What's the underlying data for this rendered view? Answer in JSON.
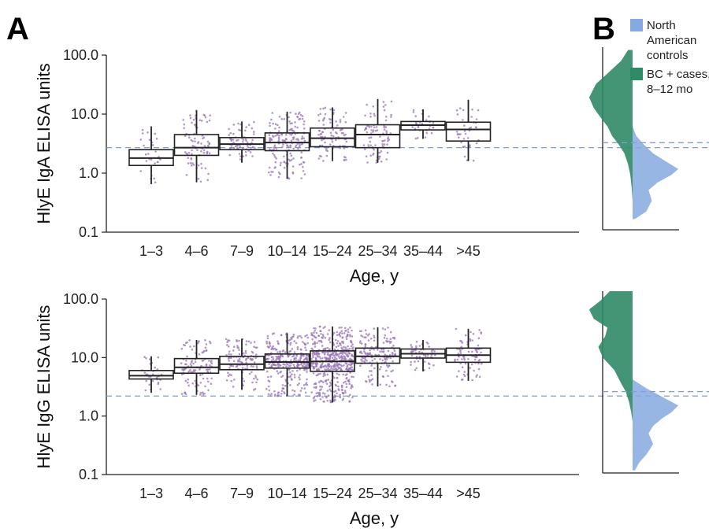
{
  "panel_labels": {
    "a": "A",
    "b": "B"
  },
  "legend": [
    {
      "label_lines": [
        "North",
        "American",
        "controls"
      ],
      "color": "#86a9df"
    },
    {
      "label_lines": [
        "BC + cases,",
        "8–12 mo"
      ],
      "color": "#2f8a66"
    }
  ],
  "colors": {
    "point": "#9a77b8",
    "box": "#222222",
    "threshold": "#7f9fd0",
    "controls": "#86a9df",
    "cases": "#2f8a66"
  },
  "chart_data": [
    {
      "type": "box",
      "panel": "A",
      "ylabel": "HlyE IgA ELISA units",
      "xlabel": "Age, y",
      "yscale": "log",
      "ylim": [
        0.1,
        100
      ],
      "yticks": [
        "100.0",
        "10.0",
        "1.0",
        "0.1"
      ],
      "ytick_values": [
        100,
        10,
        1,
        0.1
      ],
      "threshold": 2.7,
      "categories": [
        "1–3",
        "4–6",
        "7–9",
        "10–14",
        "15–24",
        "25–34",
        "35–44",
        ">45"
      ],
      "boxes": [
        {
          "min": 0.65,
          "q1": 1.35,
          "median": 1.8,
          "q3": 2.5,
          "max": 6.2,
          "n": 28
        },
        {
          "min": 0.7,
          "q1": 2.0,
          "median": 2.7,
          "q3": 4.5,
          "max": 11.5,
          "n": 80
        },
        {
          "min": 1.5,
          "q1": 2.5,
          "median": 3.1,
          "q3": 4.0,
          "max": 7.5,
          "n": 70
        },
        {
          "min": 0.8,
          "q1": 2.4,
          "median": 3.3,
          "q3": 4.8,
          "max": 11.0,
          "n": 170
        },
        {
          "min": 1.6,
          "q1": 2.8,
          "median": 3.9,
          "q3": 5.8,
          "max": 13.0,
          "n": 90
        },
        {
          "min": 1.5,
          "q1": 2.7,
          "median": 4.5,
          "q3": 6.6,
          "max": 18.0,
          "n": 85
        },
        {
          "min": 3.8,
          "q1": 5.4,
          "median": 6.5,
          "q3": 7.5,
          "max": 12.0,
          "n": 30
        },
        {
          "min": 1.6,
          "q1": 3.5,
          "median": 5.5,
          "q3": 7.3,
          "max": 17.5,
          "n": 40
        }
      ]
    },
    {
      "type": "box",
      "panel": "A",
      "ylabel": "HlyE IgG ELISA units",
      "xlabel": "Age, y",
      "yscale": "log",
      "ylim": [
        0.1,
        100
      ],
      "yticks": [
        "100.0",
        "10.0",
        "1.0",
        "0.1"
      ],
      "ytick_values": [
        100,
        10,
        1,
        0.1
      ],
      "threshold": 2.2,
      "categories": [
        "1–3",
        "4–6",
        "7–9",
        "10–14",
        "15–24",
        "25–34",
        "35–44",
        ">45"
      ],
      "boxes": [
        {
          "min": 2.5,
          "q1": 4.3,
          "median": 4.9,
          "q3": 6.0,
          "max": 10.5,
          "n": 30
        },
        {
          "min": 2.3,
          "q1": 5.4,
          "median": 6.8,
          "q3": 9.6,
          "max": 20.0,
          "n": 110
        },
        {
          "min": 2.8,
          "q1": 6.2,
          "median": 7.7,
          "q3": 10.5,
          "max": 21.0,
          "n": 120
        },
        {
          "min": 2.2,
          "q1": 6.6,
          "median": 8.4,
          "q3": 11.5,
          "max": 26.0,
          "n": 300
        },
        {
          "min": 1.7,
          "q1": 5.8,
          "median": 8.6,
          "q3": 13.0,
          "max": 34.0,
          "n": 520
        },
        {
          "min": 3.2,
          "q1": 8.0,
          "median": 10.5,
          "q3": 14.5,
          "max": 33.0,
          "n": 160
        },
        {
          "min": 5.8,
          "q1": 9.8,
          "median": 11.6,
          "q3": 14.0,
          "max": 20.0,
          "n": 55
        },
        {
          "min": 4.0,
          "q1": 8.3,
          "median": 11.0,
          "q3": 14.5,
          "max": 31.0,
          "n": 80
        }
      ]
    },
    {
      "type": "density",
      "panel": "B",
      "measure": "IgA",
      "yscale": "log",
      "ylim": [
        0.1,
        100
      ],
      "threshold": 2.7,
      "series": [
        {
          "name": "North American controls",
          "side": "right",
          "color": "#86a9df",
          "x": [
            0.15,
            0.2,
            0.3,
            0.45,
            0.6,
            0.8,
            1.0,
            1.3,
            1.8,
            2.5,
            3.5,
            5.0
          ],
          "y": [
            0.05,
            0.3,
            0.42,
            0.35,
            0.55,
            0.85,
            1.0,
            0.75,
            0.45,
            0.25,
            0.08,
            0.0
          ]
        },
        {
          "name": "BC + cases, 8–12 mo",
          "side": "left",
          "color": "#2f8a66",
          "x": [
            0.3,
            0.5,
            0.8,
            1.2,
            1.8,
            2.5,
            3.5,
            5.0,
            7.0,
            10.0,
            15.0,
            25.0,
            40.0,
            60.0,
            90.0
          ],
          "y": [
            0.0,
            0.02,
            0.05,
            0.1,
            0.18,
            0.3,
            0.45,
            0.55,
            0.7,
            0.85,
            0.95,
            0.8,
            0.5,
            0.25,
            0.1
          ]
        }
      ]
    },
    {
      "type": "density",
      "panel": "B",
      "measure": "IgG",
      "yscale": "log",
      "ylim": [
        0.1,
        100
      ],
      "threshold": 2.2,
      "series": [
        {
          "name": "North American controls",
          "side": "right",
          "color": "#86a9df",
          "x": [
            0.11,
            0.15,
            0.2,
            0.3,
            0.45,
            0.6,
            0.8,
            1.0,
            1.3,
            1.8,
            2.5,
            3.5
          ],
          "y": [
            0.05,
            0.15,
            0.3,
            0.45,
            0.35,
            0.45,
            0.65,
            0.85,
            1.0,
            0.65,
            0.3,
            0.0
          ]
        },
        {
          "name": "BC + cases, 8–12 mo",
          "side": "left",
          "color": "#2f8a66",
          "x": [
            0.7,
            1.0,
            1.5,
            2.2,
            3.0,
            5.0,
            8.0,
            12.0,
            18.0,
            25.0,
            35.0,
            50.0,
            70.0,
            100.0
          ],
          "y": [
            0.0,
            0.03,
            0.08,
            0.15,
            0.25,
            0.4,
            0.65,
            0.75,
            0.6,
            0.55,
            0.85,
            0.95,
            0.7,
            0.5
          ]
        }
      ]
    }
  ]
}
